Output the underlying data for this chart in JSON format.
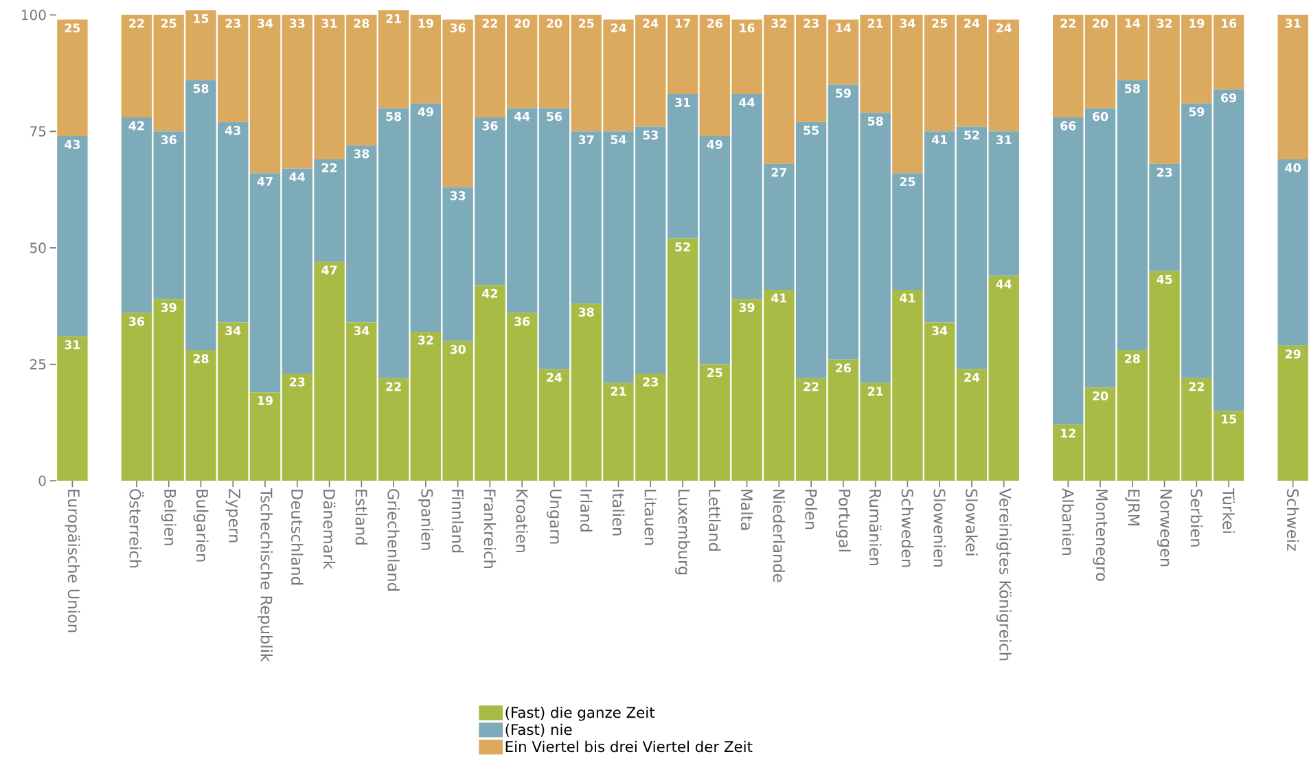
{
  "chart_data": {
    "type": "bar",
    "stacked": true,
    "data_labels": true,
    "legend": "bottom",
    "grid": false,
    "categories": [
      "Europäische Union",
      null,
      "Österreich",
      "Belgien",
      "Bulgarien",
      "Zypern",
      "Tschechische Republik",
      "Deutschland",
      "Dänemark",
      "Estland",
      "Griechenland",
      "Spanien",
      "Finnland",
      "Frankreich",
      "Kroatien",
      "Ungarn",
      "Irland",
      "Italien",
      "Litauen",
      "Luxemburg",
      "Lettland",
      "Malta",
      "Niederlande",
      "Polen",
      "Portugal",
      "Rumänien",
      "Schweden",
      "Slowenien",
      "Slowakei",
      "Vereinigtes Königreich",
      null,
      "Albanien",
      "Montenegro",
      "EJRM",
      "Norwegen",
      "Serbien",
      "Türkei",
      null,
      "Schweiz"
    ],
    "series": [
      {
        "name": "(Fast) die ganze Zeit",
        "color": "#a8bc45",
        "values": [
          31,
          null,
          36,
          39,
          28,
          34,
          19,
          23,
          47,
          34,
          22,
          32,
          30,
          42,
          36,
          24,
          38,
          21,
          23,
          52,
          25,
          39,
          41,
          22,
          26,
          21,
          41,
          34,
          24,
          44,
          null,
          12,
          20,
          28,
          45,
          22,
          15,
          null,
          29
        ]
      },
      {
        "name": "(Fast) nie",
        "color": "#7eabb9",
        "values": [
          43,
          null,
          42,
          36,
          58,
          43,
          47,
          44,
          22,
          38,
          58,
          49,
          33,
          36,
          44,
          56,
          37,
          54,
          53,
          31,
          49,
          44,
          27,
          55,
          59,
          58,
          25,
          41,
          52,
          31,
          null,
          66,
          60,
          58,
          23,
          59,
          69,
          null,
          40
        ]
      },
      {
        "name": "Ein Viertel bis drei Viertel der Zeit",
        "color": "#dcaa5e",
        "values": [
          25,
          null,
          22,
          25,
          15,
          23,
          34,
          33,
          31,
          28,
          21,
          19,
          36,
          22,
          20,
          20,
          25,
          24,
          24,
          17,
          26,
          16,
          32,
          23,
          14,
          21,
          34,
          25,
          24,
          24,
          null,
          22,
          20,
          14,
          32,
          19,
          16,
          null,
          31
        ]
      }
    ],
    "ylim": [
      0,
      101
    ],
    "yticks": [
      0,
      25,
      50,
      75,
      100
    ]
  }
}
